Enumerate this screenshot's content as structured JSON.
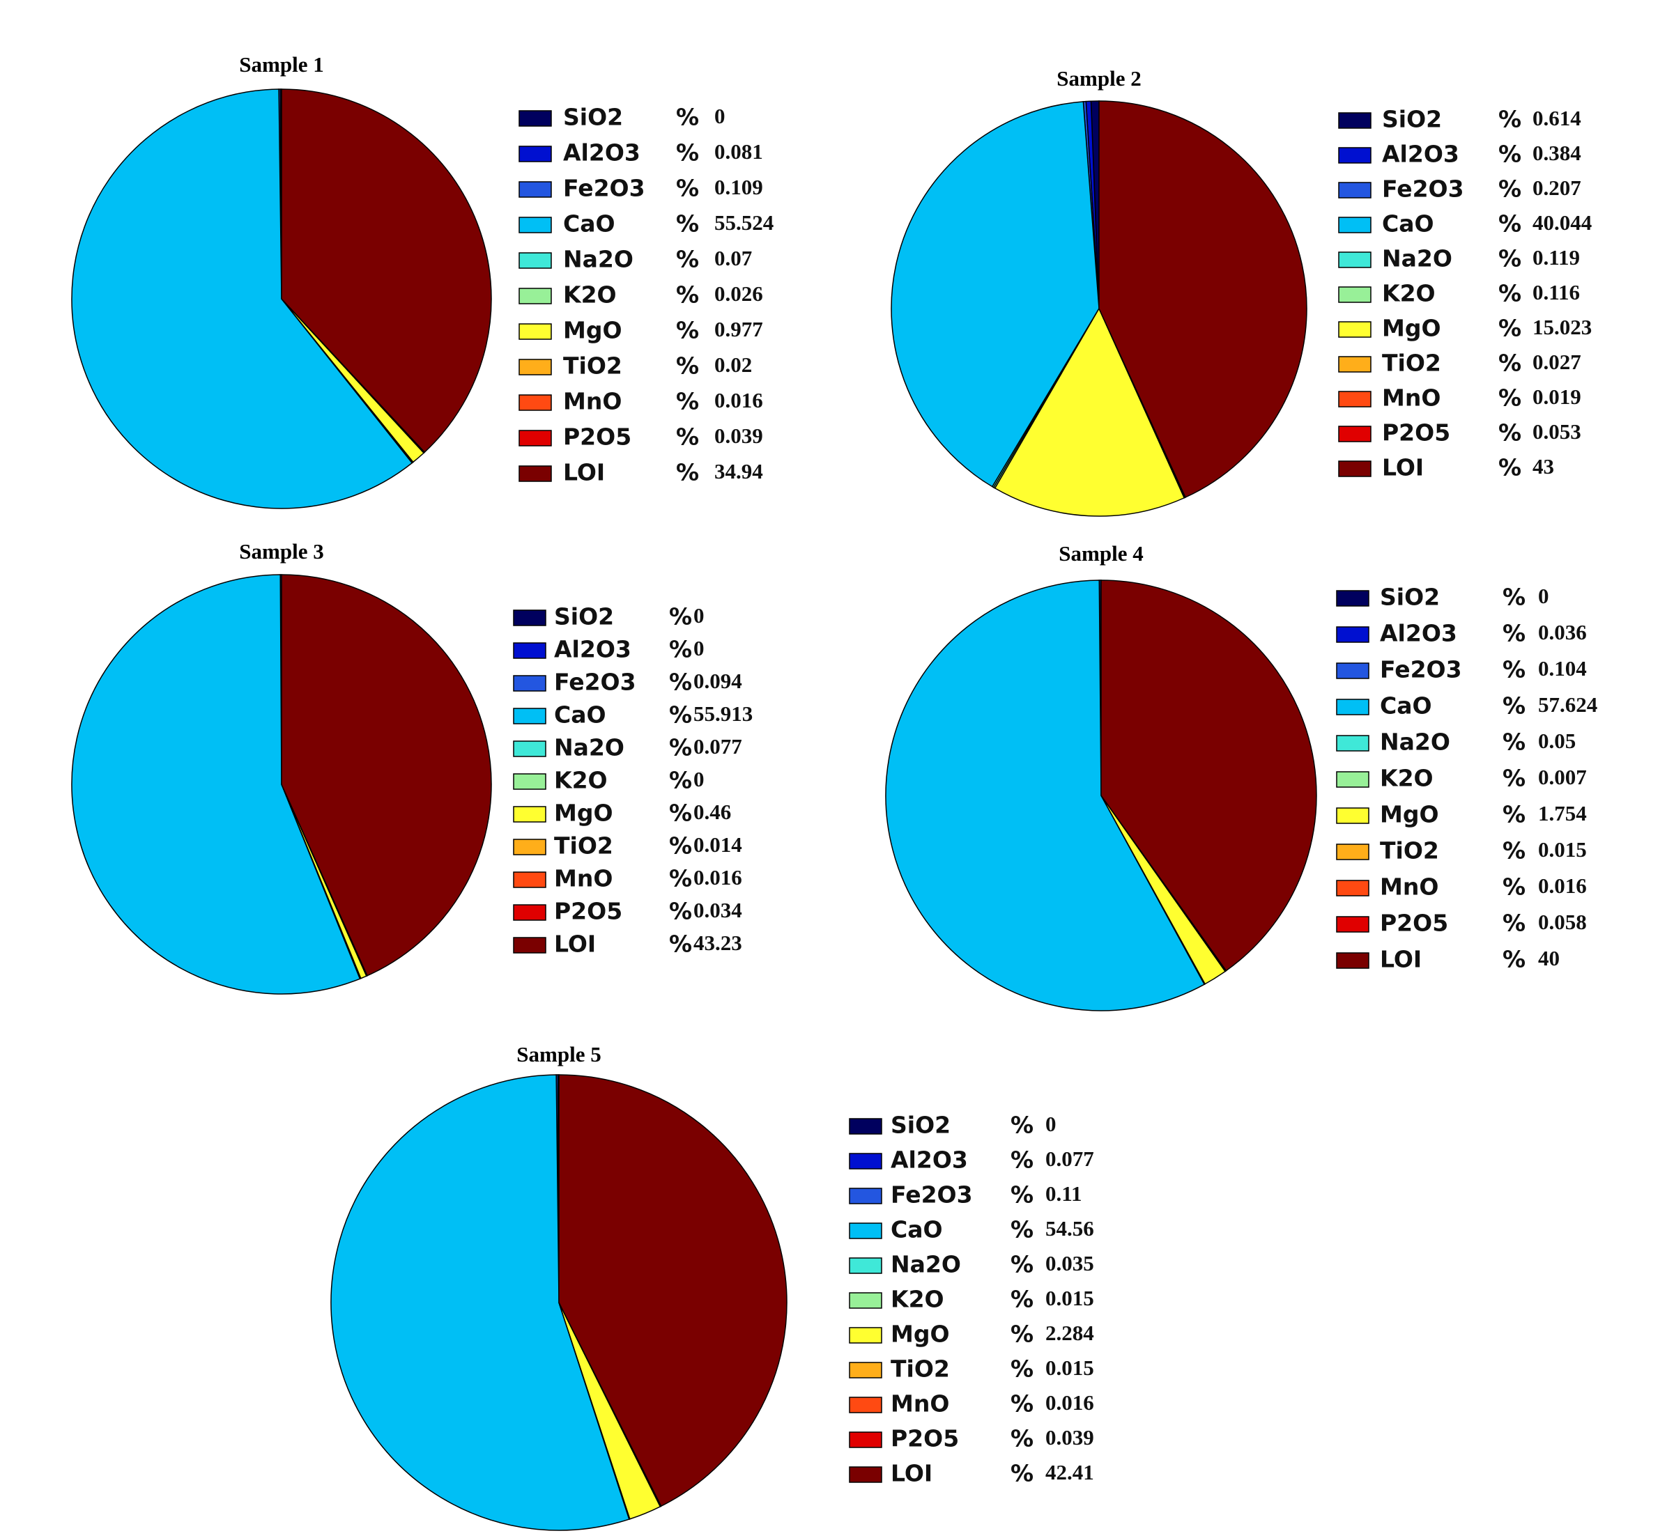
{
  "chart_data": [
    {
      "type": "pie",
      "title": "Sample 1",
      "unit": "%",
      "categories": [
        "SiO2",
        "Al2O3",
        "Fe2O3",
        "CaO",
        "Na2O",
        "K2O",
        "MgO",
        "TiO2",
        "MnO",
        "P2O5",
        "LOI"
      ],
      "values": [
        0,
        0.081,
        0.109,
        55.524,
        0.07,
        0.026,
        0.977,
        0.02,
        0.016,
        0.039,
        34.94
      ],
      "colors": [
        "#00005e",
        "#0010d0",
        "#2356e0",
        "#00bff5",
        "#3fe8d8",
        "#98f098",
        "#ffff30",
        "#ffae1a",
        "#ff4a12",
        "#e00000",
        "#7a0000"
      ]
    },
    {
      "type": "pie",
      "title": "Sample 2",
      "unit": "%",
      "categories": [
        "SiO2",
        "Al2O3",
        "Fe2O3",
        "CaO",
        "Na2O",
        "K2O",
        "MgO",
        "TiO2",
        "MnO",
        "P2O5",
        "LOI"
      ],
      "values": [
        0.614,
        0.384,
        0.207,
        40.044,
        0.119,
        0.116,
        15.023,
        0.027,
        0.019,
        0.053,
        43
      ],
      "colors": [
        "#00005e",
        "#0010d0",
        "#2356e0",
        "#00bff5",
        "#3fe8d8",
        "#98f098",
        "#ffff30",
        "#ffae1a",
        "#ff4a12",
        "#e00000",
        "#7a0000"
      ]
    },
    {
      "type": "pie",
      "title": "Sample 3",
      "unit": "%",
      "categories": [
        "SiO2",
        "Al2O3",
        "Fe2O3",
        "CaO",
        "Na2O",
        "K2O",
        "MgO",
        "TiO2",
        "MnO",
        "P2O5",
        "LOI"
      ],
      "values": [
        0,
        0,
        0.094,
        55.913,
        0.077,
        0,
        0.46,
        0.014,
        0.016,
        0.034,
        43.23
      ],
      "colors": [
        "#00005e",
        "#0010d0",
        "#2356e0",
        "#00bff5",
        "#3fe8d8",
        "#98f098",
        "#ffff30",
        "#ffae1a",
        "#ff4a12",
        "#e00000",
        "#7a0000"
      ]
    },
    {
      "type": "pie",
      "title": "Sample 4",
      "unit": "%",
      "categories": [
        "SiO2",
        "Al2O3",
        "Fe2O3",
        "CaO",
        "Na2O",
        "K2O",
        "MgO",
        "TiO2",
        "MnO",
        "P2O5",
        "LOI"
      ],
      "values": [
        0,
        0.036,
        0.104,
        57.624,
        0.05,
        0.007,
        1.754,
        0.015,
        0.016,
        0.058,
        40
      ],
      "colors": [
        "#00005e",
        "#0010d0",
        "#2356e0",
        "#00bff5",
        "#3fe8d8",
        "#98f098",
        "#ffff30",
        "#ffae1a",
        "#ff4a12",
        "#e00000",
        "#7a0000"
      ]
    },
    {
      "type": "pie",
      "title": "Sample 5",
      "unit": "%",
      "categories": [
        "SiO2",
        "Al2O3",
        "Fe2O3",
        "CaO",
        "Na2O",
        "K2O",
        "MgO",
        "TiO2",
        "MnO",
        "P2O5",
        "LOI"
      ],
      "values": [
        0,
        0.077,
        0.11,
        54.56,
        0.035,
        0.015,
        2.284,
        0.015,
        0.016,
        0.039,
        42.41
      ],
      "colors": [
        "#00005e",
        "#0010d0",
        "#2356e0",
        "#00bff5",
        "#3fe8d8",
        "#98f098",
        "#ffff30",
        "#ffae1a",
        "#ff4a12",
        "#e00000",
        "#7a0000"
      ]
    }
  ]
}
